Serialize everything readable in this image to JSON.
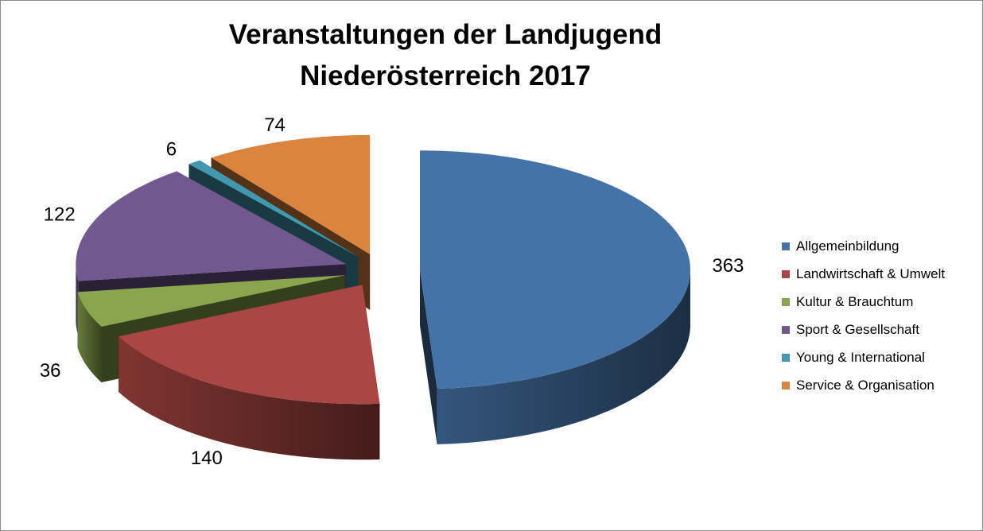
{
  "chart_data": {
    "type": "pie",
    "title_line1": "Veranstaltungen der Landjugend",
    "title_line2": "Niederösterreich 2017",
    "categories": [
      "Allgemeinbildung",
      "Landwirtschaft & Umwelt",
      "Kultur & Brauchtum",
      "Sport & Gesellschaft",
      "Young & International",
      "Service & Organisation"
    ],
    "values": [
      363,
      140,
      36,
      122,
      6,
      74
    ],
    "colors": [
      "#4572A7",
      "#AA4643",
      "#89A54E",
      "#71588F",
      "#4198AF",
      "#DB843D"
    ],
    "legend_position": "right",
    "style": "3d-exploded"
  }
}
